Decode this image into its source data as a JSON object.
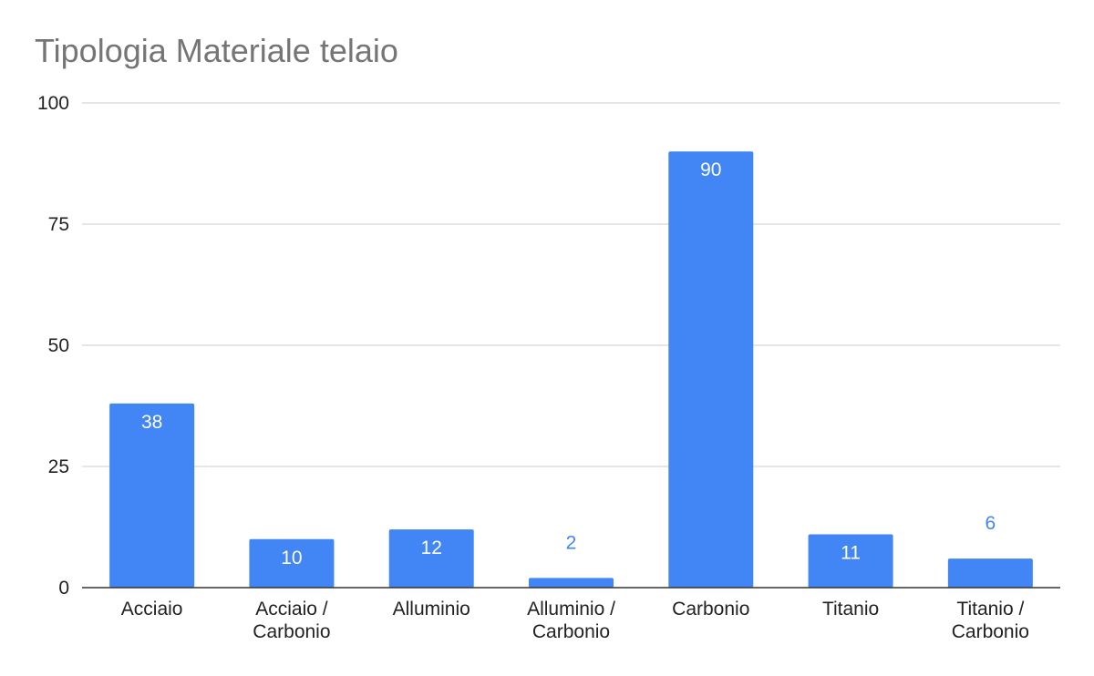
{
  "chart_data": {
    "type": "bar",
    "title": "Tipologia Materiale telaio",
    "categories": [
      [
        "Acciaio"
      ],
      [
        "Acciaio /",
        "Carbonio"
      ],
      [
        "Alluminio"
      ],
      [
        "Alluminio /",
        "Carbonio"
      ],
      [
        "Carbonio"
      ],
      [
        "Titanio"
      ],
      [
        "Titanio /",
        "Carbonio"
      ]
    ],
    "values": [
      38,
      10,
      12,
      2,
      90,
      11,
      6
    ],
    "ylim": [
      0,
      100
    ],
    "yticks": [
      0,
      25,
      50,
      75,
      100
    ],
    "grid": true,
    "legend": "none",
    "bar_color": "#4285f4",
    "gridline_color": "#cccccc",
    "baseline_color": "#333333",
    "title_color": "#757575"
  }
}
